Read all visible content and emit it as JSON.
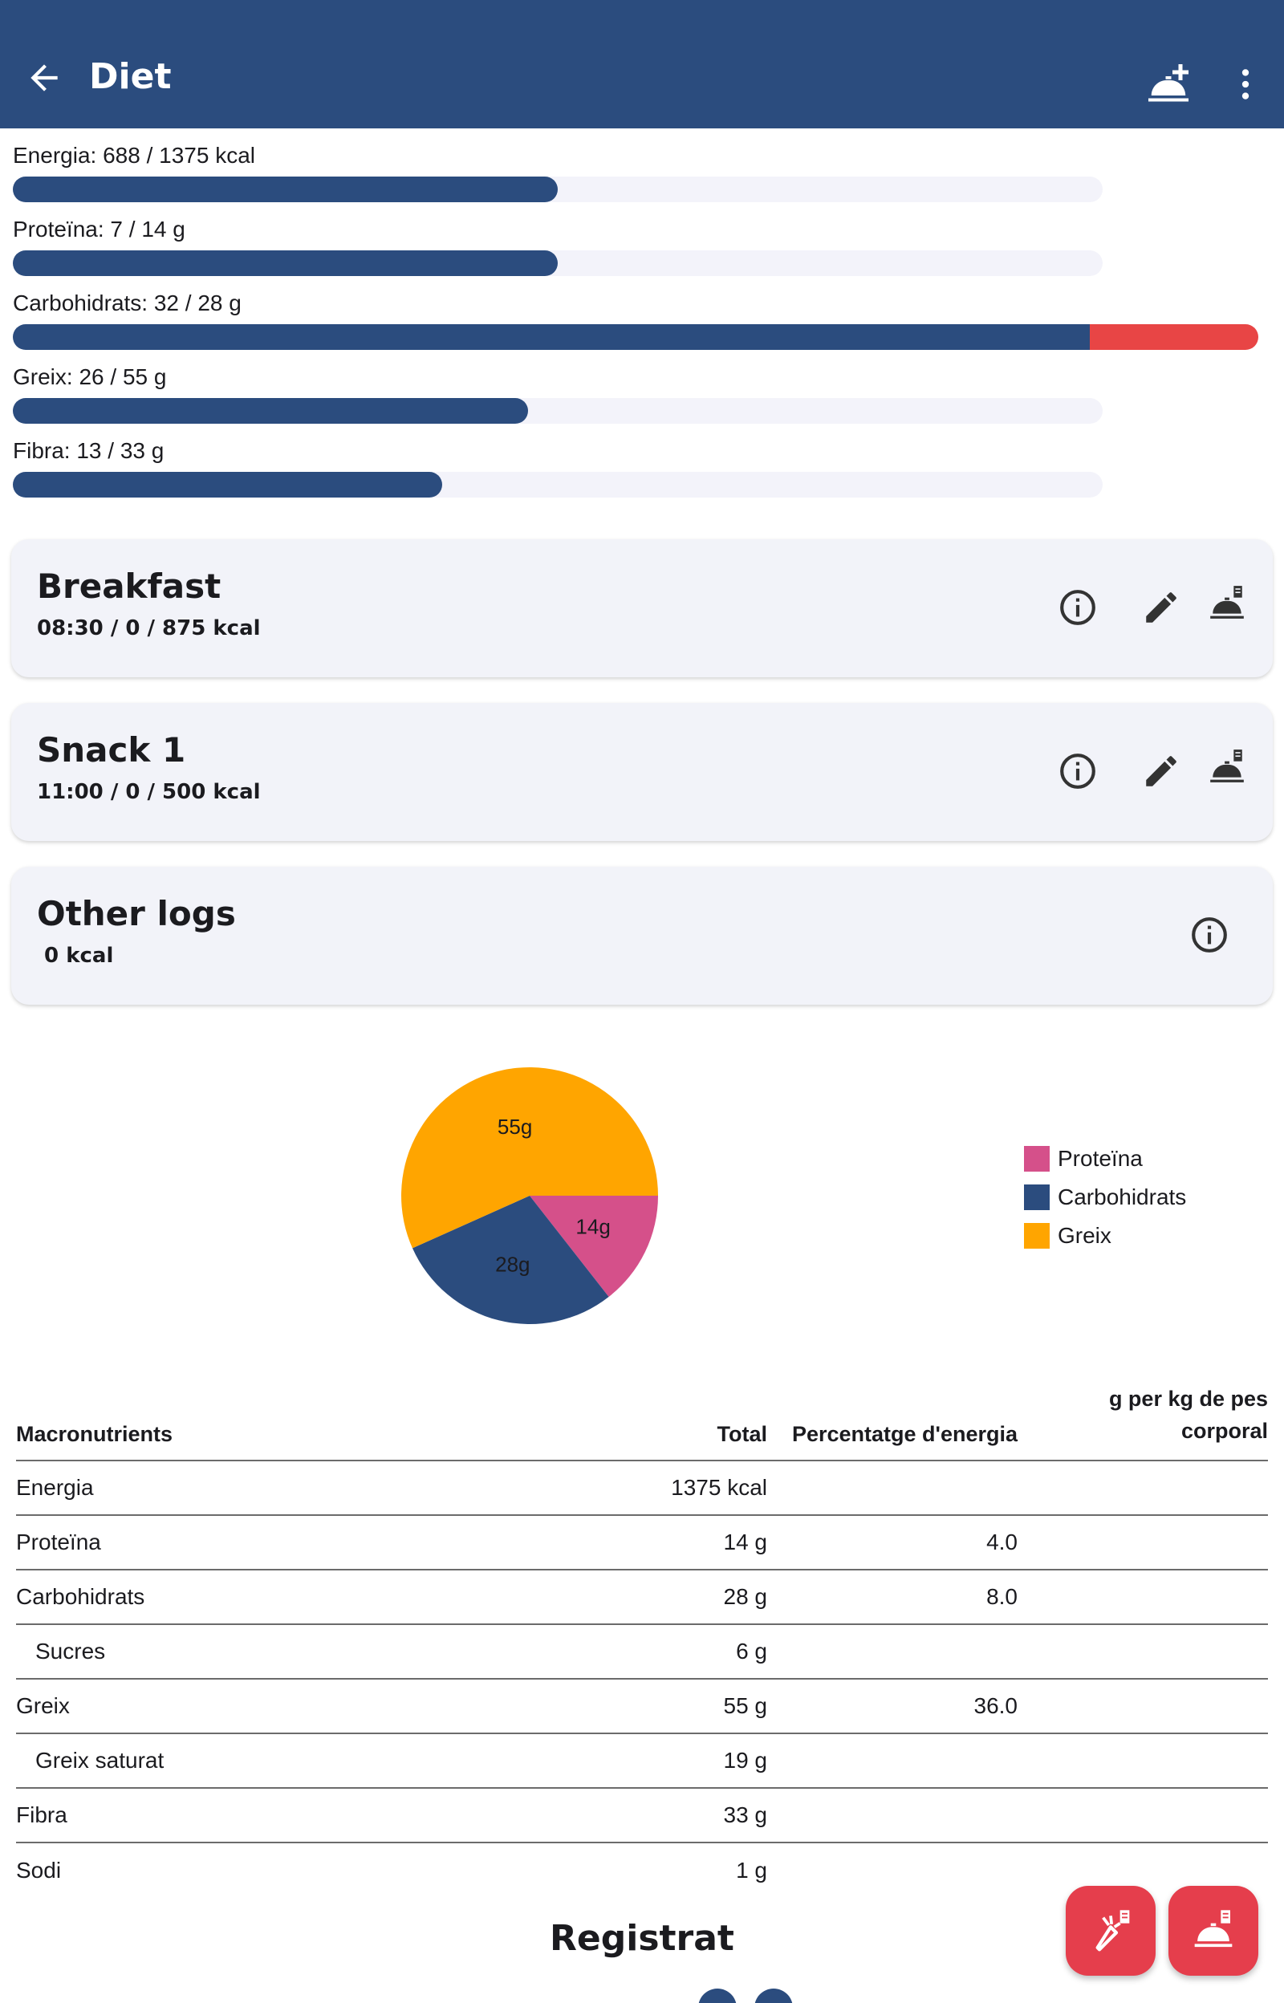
{
  "appbar": {
    "title": "Diet",
    "back_icon": "arrow-back-icon",
    "add_meal_icon": "add-meal-icon",
    "more_icon": "more-vert-icon"
  },
  "progress": [
    {
      "label": "Energia: 688 / 1375 kcal",
      "fraction": 0.5,
      "over": 0
    },
    {
      "label": "Proteïna: 7 / 14 g",
      "fraction": 0.5,
      "over": 0
    },
    {
      "label": "Carbohidrats: 32 / 28 g",
      "fraction": 1.0,
      "over": 0.143
    },
    {
      "label": "Greix: 26 / 55 g",
      "fraction": 0.473,
      "over": 0
    },
    {
      "label": "Fibra: 13 / 33 g",
      "fraction": 0.394,
      "over": 0
    }
  ],
  "meals": [
    {
      "title": "Breakfast",
      "subtitle": "08:30 /  0 / 875 kcal"
    },
    {
      "title": "Snack 1",
      "subtitle": "11:00 /  0 / 500 kcal"
    }
  ],
  "other_logs": {
    "title": "Other logs",
    "subtitle": " 0 kcal"
  },
  "chart_data": {
    "type": "pie",
    "slices": [
      {
        "name": "Proteïna",
        "value": 14,
        "label": "14g",
        "color": "#d5508a"
      },
      {
        "name": "Carbohidrats",
        "value": 28,
        "label": "28g",
        "color": "#2b4c7e"
      },
      {
        "name": "Greix",
        "value": 55,
        "label": "55g",
        "color": "#ffa500"
      }
    ],
    "legend_position": "right"
  },
  "table": {
    "headers": [
      "Macronutrients",
      "Total",
      "Percentatge d'energia",
      "g per kg de pes corporal"
    ],
    "rows": [
      {
        "name": "Energia",
        "total": "1375 kcal",
        "pct": "",
        "per_kg": "",
        "indent": false
      },
      {
        "name": "Proteïna",
        "total": "14 g",
        "pct": "4.0",
        "per_kg": "",
        "indent": false
      },
      {
        "name": "Carbohidrats",
        "total": "28 g",
        "pct": "8.0",
        "per_kg": "",
        "indent": false
      },
      {
        "name": "Sucres",
        "total": "6 g",
        "pct": "",
        "per_kg": "",
        "indent": true
      },
      {
        "name": "Greix",
        "total": "55 g",
        "pct": "36.0",
        "per_kg": "",
        "indent": false
      },
      {
        "name": "Greix saturat",
        "total": "19 g",
        "pct": "",
        "per_kg": "",
        "indent": true
      },
      {
        "name": "Fibra",
        "total": "33 g",
        "pct": "",
        "per_kg": "",
        "indent": false
      },
      {
        "name": "Sodi",
        "total": "1 g",
        "pct": "",
        "per_kg": "",
        "indent": false
      }
    ]
  },
  "section_title": "Registrat",
  "fabs": [
    {
      "icon": "add-ingredient-icon"
    },
    {
      "icon": "add-meal-icon"
    }
  ],
  "colors": {
    "primary": "#2b4c7e",
    "over": "#e84545",
    "fab": "#e53e4c",
    "card": "#f2f3f9"
  }
}
